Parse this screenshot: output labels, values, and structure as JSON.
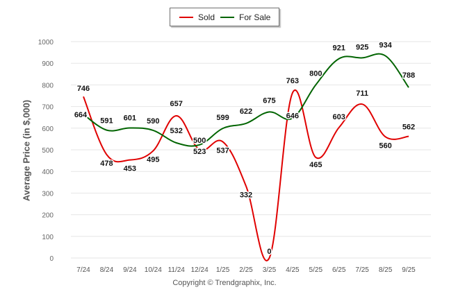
{
  "chart_data": {
    "type": "line",
    "title": "",
    "xlabel": "",
    "ylabel": "Average Price (in $,000)",
    "ylim": [
      0,
      1000
    ],
    "yticks": [
      0,
      100,
      200,
      300,
      400,
      500,
      600,
      700,
      800,
      900,
      1000
    ],
    "grid": true,
    "legend_position": "top-center",
    "categories": [
      "7/24",
      "8/24",
      "9/24",
      "10/24",
      "11/24",
      "12/24",
      "1/25",
      "2/25",
      "3/25",
      "4/25",
      "5/25",
      "6/25",
      "7/25",
      "8/25",
      "9/25"
    ],
    "series": [
      {
        "name": "Sold",
        "color": "#e00000",
        "values": [
          746,
          478,
          453,
          495,
          657,
          500,
          537,
          332,
          0,
          763,
          465,
          603,
          711,
          560,
          562
        ]
      },
      {
        "name": "For Sale",
        "color": "#006400",
        "values": [
          664,
          591,
          601,
          590,
          532,
          523,
          599,
          622,
          675,
          646,
          800,
          921,
          925,
          934,
          788
        ]
      }
    ],
    "legend": {
      "sold_label": "Sold",
      "forsale_label": "For Sale"
    },
    "footer": "Copyright © Trendgraphix, Inc."
  }
}
